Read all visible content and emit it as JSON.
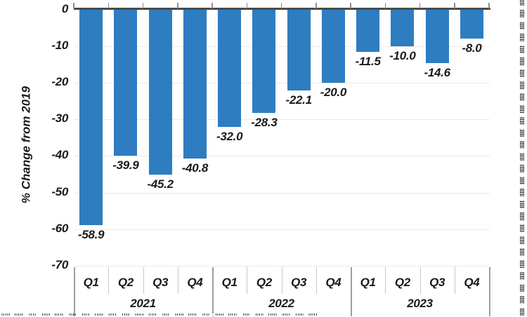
{
  "chart_data": {
    "type": "bar",
    "title": "",
    "ylabel": "% Change from 2019",
    "xlabel": "",
    "ylim": [
      -70,
      0
    ],
    "y_ticks": [
      "0",
      "-10",
      "-20",
      "-30",
      "-40",
      "-50",
      "-60",
      "-70"
    ],
    "grid": true,
    "legend": false,
    "bar_color": "#2d7dc0",
    "groups": [
      {
        "year": "2021",
        "categories": [
          "Q1",
          "Q2",
          "Q3",
          "Q4"
        ],
        "values": [
          -58.9,
          -39.9,
          -45.2,
          -40.8
        ],
        "value_labels": [
          "-58.9",
          "-39.9",
          "-45.2",
          "-40.8"
        ]
      },
      {
        "year": "2022",
        "categories": [
          "Q1",
          "Q2",
          "Q3",
          "Q4"
        ],
        "values": [
          -32.0,
          -28.3,
          -22.1,
          -20.0
        ],
        "value_labels": [
          "-32.0",
          "-28.3",
          "-22.1",
          "-20.0"
        ]
      },
      {
        "year": "2023",
        "categories": [
          "Q1",
          "Q2",
          "Q3",
          "Q4"
        ],
        "values": [
          -11.5,
          -10.0,
          -14.6,
          -8.0
        ],
        "value_labels": [
          "-11.5",
          "-10.0",
          "-14.6",
          "-8.0"
        ]
      }
    ]
  },
  "colors": {
    "bar": "#2d7dc0",
    "zero_line": "#4a4a4a",
    "top_tick": "#8f8f8f",
    "gridline": "#eaeaea",
    "quarter_separator": "#c6c6c6",
    "year_separator": "#9e9e9e",
    "text": "#1a1a1a"
  }
}
